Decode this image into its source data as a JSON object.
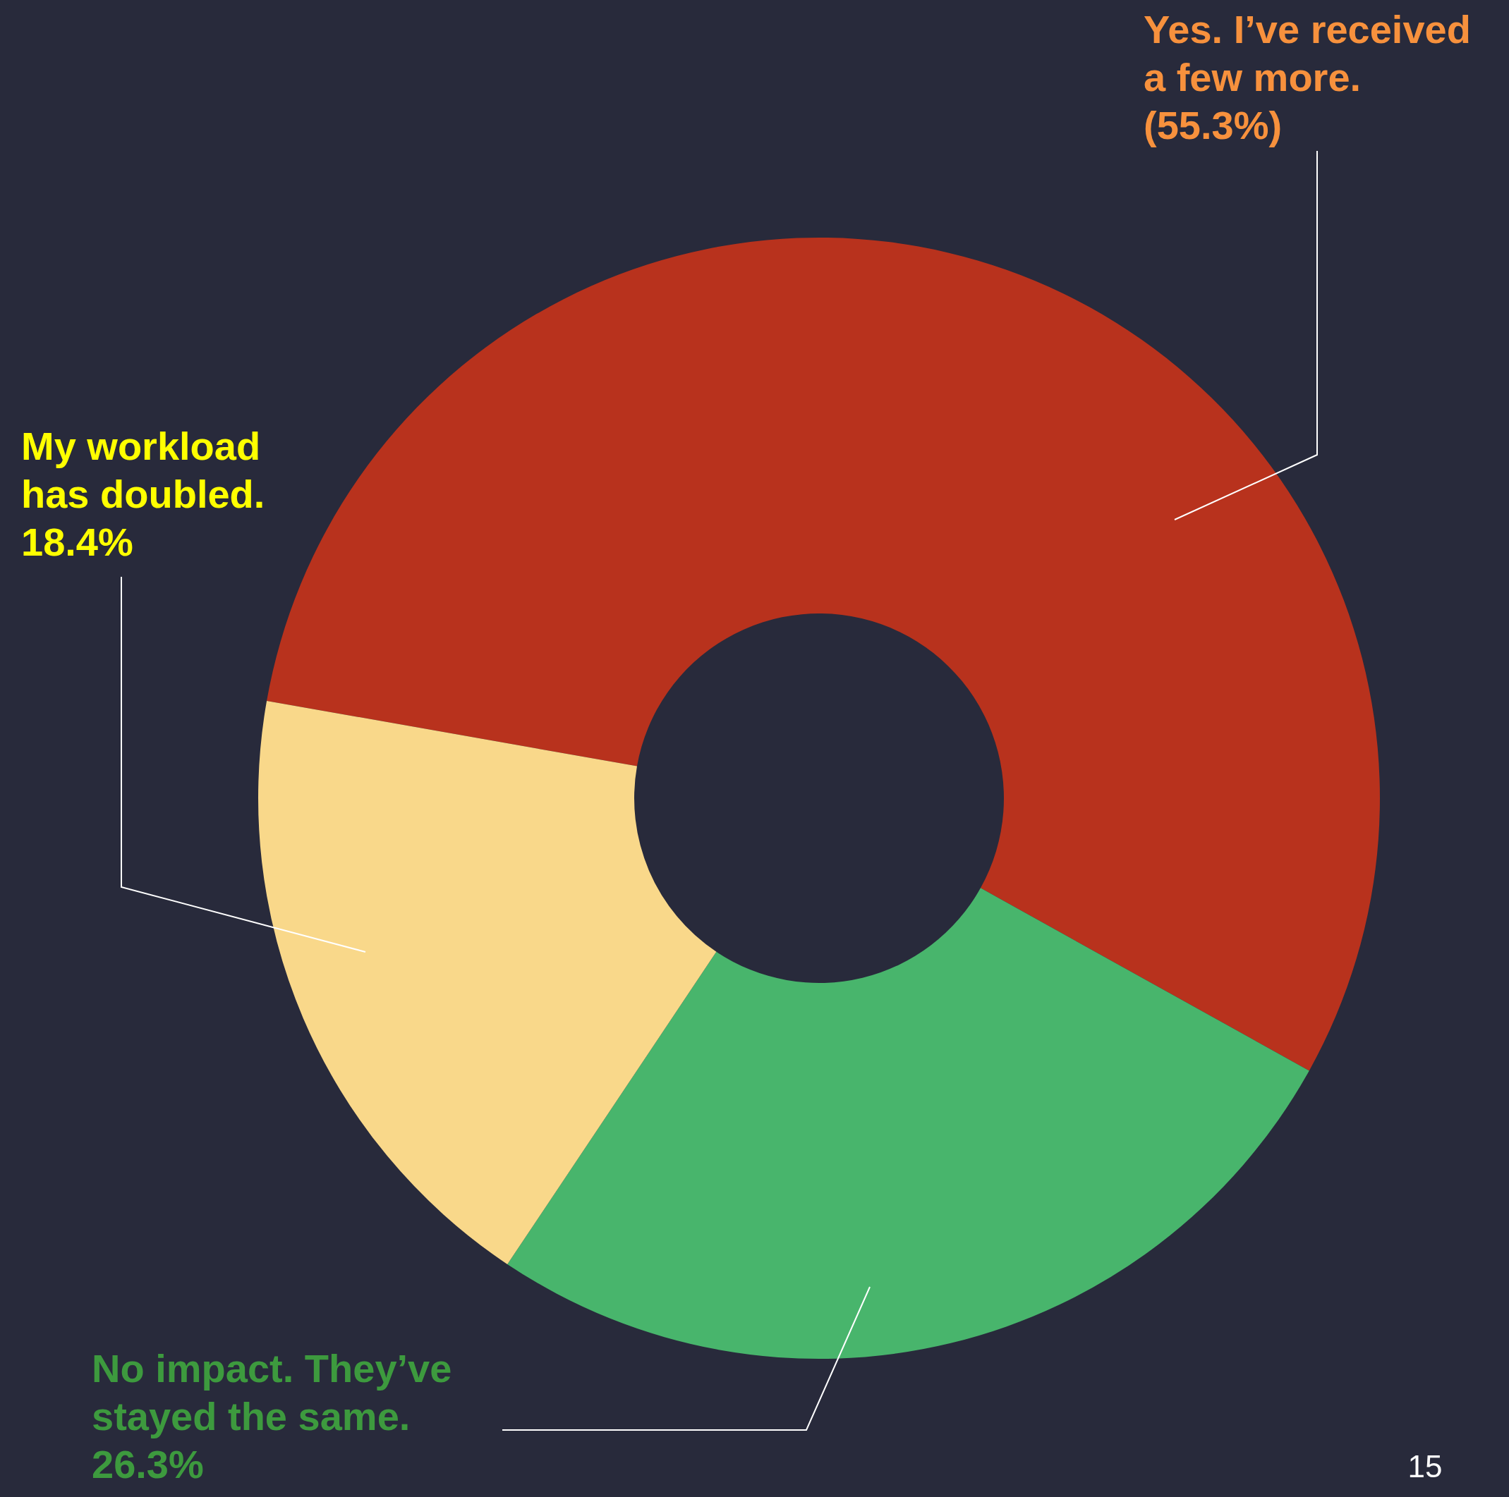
{
  "chart_data": {
    "type": "donut",
    "categories": [
      "Yes. I’ve received a few more.",
      "No impact. They’ve stayed the same.",
      "My workload has doubled."
    ],
    "values": [
      55.3,
      26.3,
      18.4
    ],
    "colors": [
      "#b8321d",
      "#48b56c",
      "#f9d88a"
    ],
    "value_labels": [
      "(55.3%)",
      "26.3%",
      "18.4%"
    ],
    "annotations": [
      "15"
    ]
  }
}
